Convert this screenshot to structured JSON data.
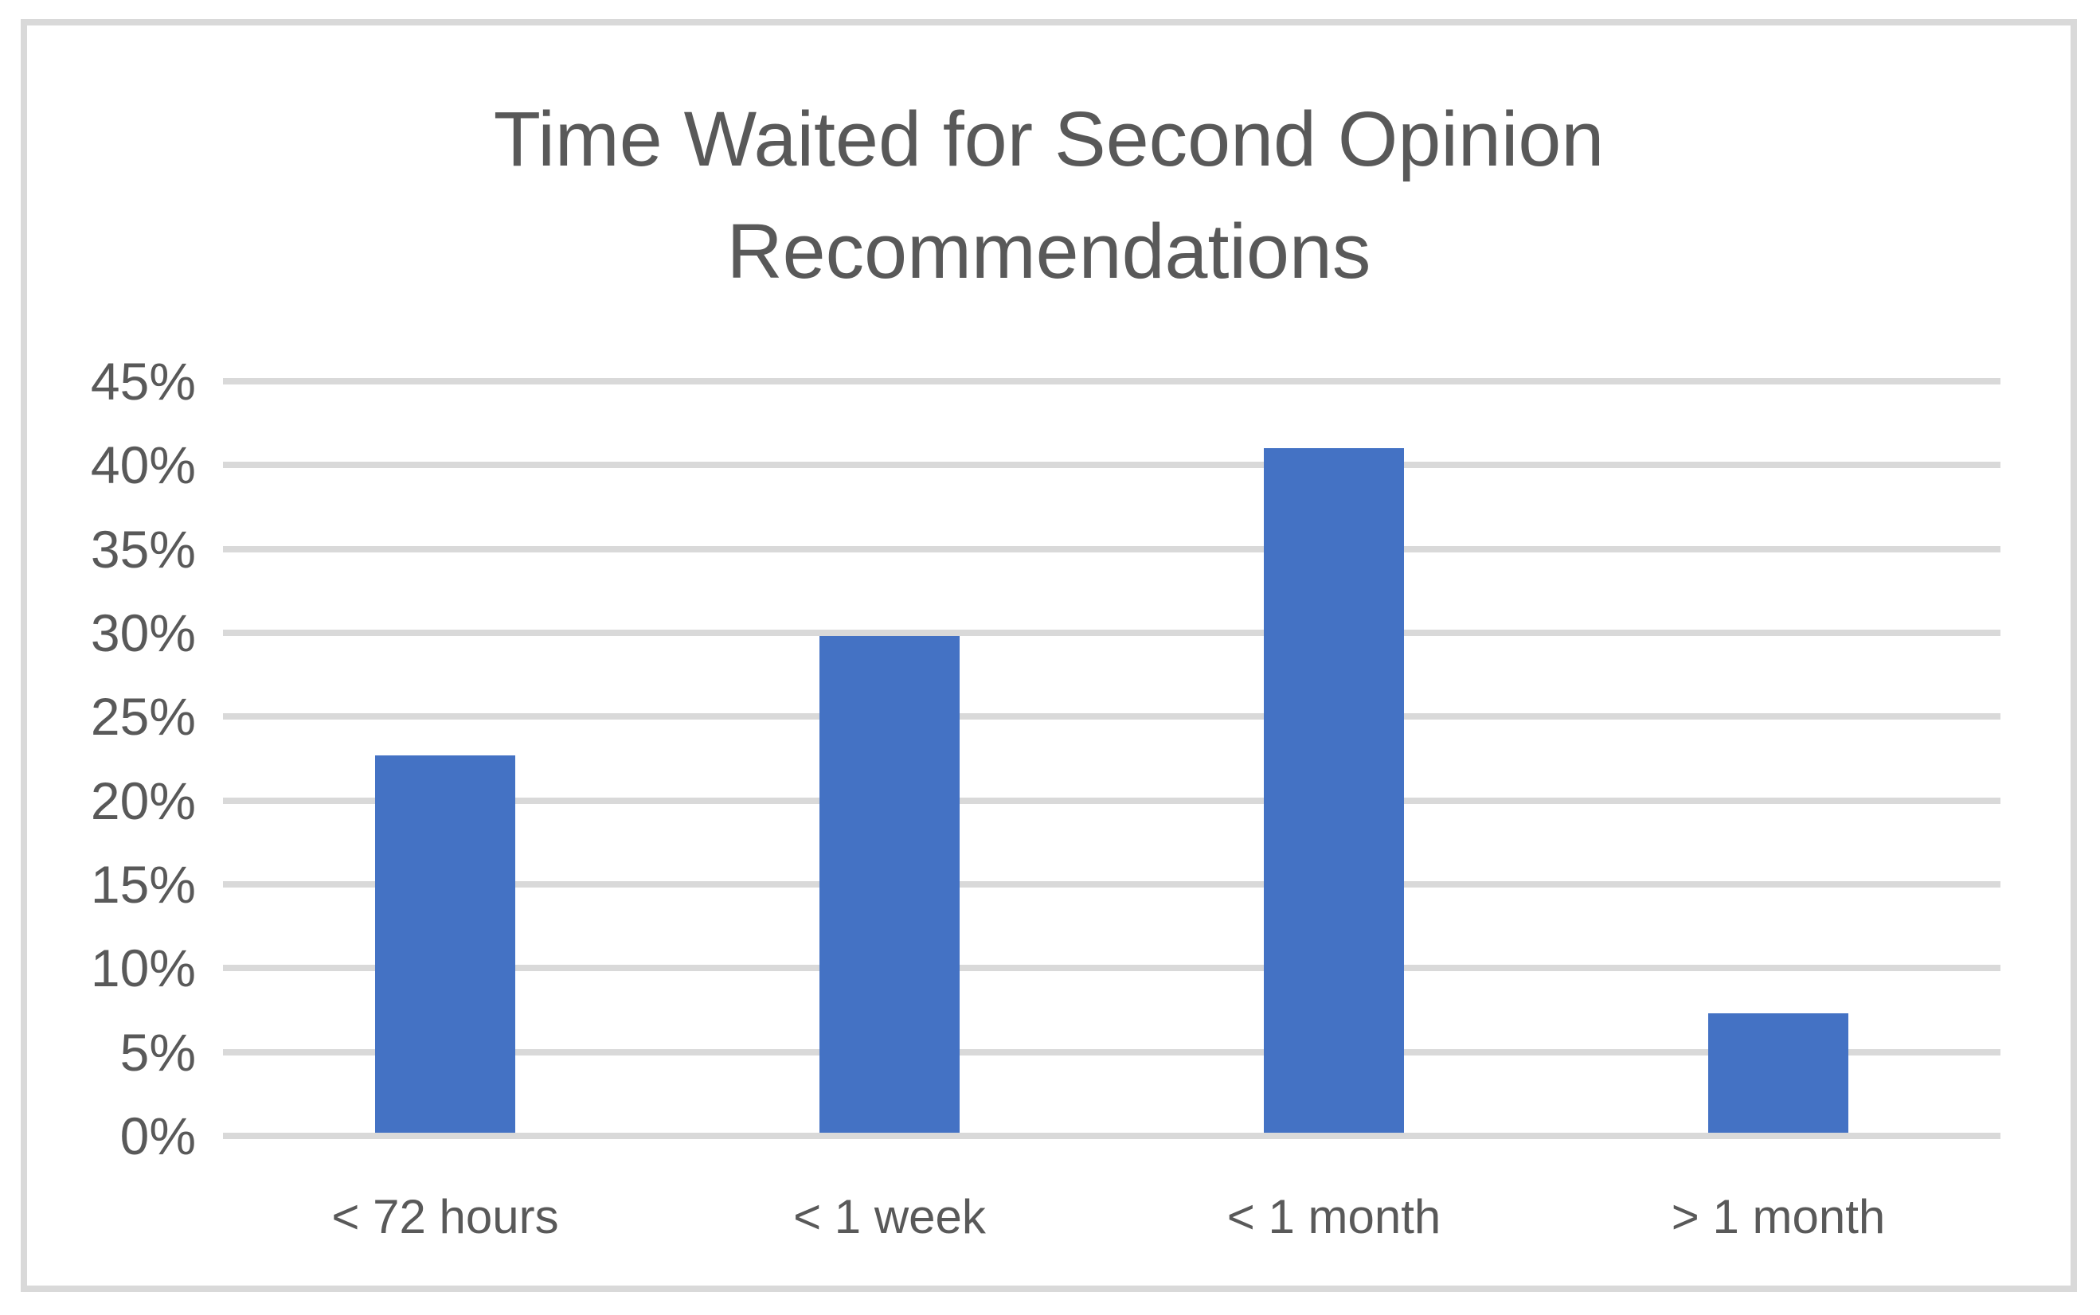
{
  "title": {
    "lines": [
      "Time Waited for Second Opinion",
      "Recommendations"
    ],
    "full": "Time Waited for Second Opinion Recommendations"
  },
  "chart_data": {
    "type": "bar",
    "title": "Time Waited for Second Opinion Recommendations",
    "categories": [
      "< 72 hours",
      "< 1 week",
      "< 1 month",
      "> 1 month"
    ],
    "values": [
      22.5,
      29.6,
      40.8,
      7.1
    ],
    "value_unit": "%",
    "xlabel": "",
    "ylabel": "",
    "ylim": [
      0,
      45
    ],
    "ytick_step": 5,
    "ytick_labels": [
      "0%",
      "5%",
      "10%",
      "15%",
      "20%",
      "25%",
      "30%",
      "35%",
      "40%",
      "45%"
    ],
    "grid": true,
    "legend": false,
    "series_name": "",
    "colors": {
      "bar": "#4472C4",
      "gridline": "#D9D9D9",
      "frame_border": "#D9D9D9",
      "text": "#595959",
      "background": "#FFFFFF"
    }
  }
}
